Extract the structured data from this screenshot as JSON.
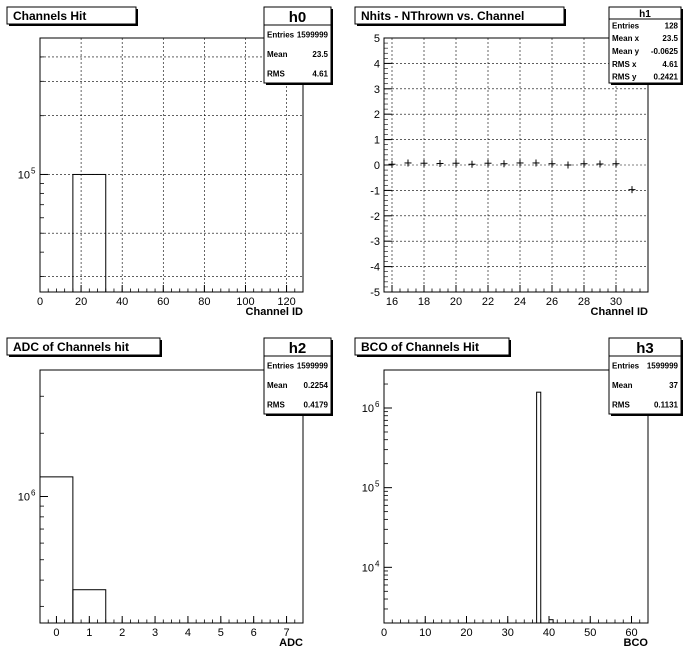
{
  "chart_data": [
    {
      "id": "h0",
      "type": "bar",
      "title": "Channels Hit",
      "xlabel": "Channel ID",
      "ylabel": "",
      "xlim": [
        0,
        128
      ],
      "ylim": [
        25000,
        500000
      ],
      "log_y": true,
      "grid": true,
      "x_ticks": [
        "0",
        "20",
        "40",
        "60",
        "80",
        "100",
        "120"
      ],
      "y_ticks": [
        "10^5"
      ],
      "bins": [
        {
          "x0": 16,
          "x1": 32,
          "value": 100000
        }
      ],
      "stats": {
        "name": "h0",
        "rows": [
          [
            "Entries",
            "1599999"
          ],
          [
            "Mean",
            "23.5"
          ],
          [
            "RMS",
            "4.61"
          ]
        ]
      }
    },
    {
      "id": "h1",
      "type": "scatter",
      "title": "Nhits - NThrown vs. Channel",
      "xlabel": "Channel ID",
      "ylabel": "",
      "xlim": [
        15.5,
        32
      ],
      "ylim": [
        -5,
        5
      ],
      "grid": true,
      "x_ticks": [
        "16",
        "18",
        "20",
        "22",
        "24",
        "26",
        "28",
        "30"
      ],
      "y_ticks": [
        "-5",
        "-4",
        "-3",
        "-2",
        "-1",
        "0",
        "1",
        "2",
        "3",
        "4",
        "5"
      ],
      "points": [
        {
          "x": 16,
          "y": 0.03
        },
        {
          "x": 17,
          "y": 0.08
        },
        {
          "x": 18,
          "y": 0.07
        },
        {
          "x": 19,
          "y": 0.06
        },
        {
          "x": 20,
          "y": 0.07
        },
        {
          "x": 21,
          "y": 0.03
        },
        {
          "x": 22,
          "y": 0.07
        },
        {
          "x": 23,
          "y": 0.05
        },
        {
          "x": 24,
          "y": 0.08
        },
        {
          "x": 25,
          "y": 0.08
        },
        {
          "x": 26,
          "y": 0.05
        },
        {
          "x": 27,
          "y": 0.0
        },
        {
          "x": 28,
          "y": 0.05
        },
        {
          "x": 29,
          "y": 0.04
        },
        {
          "x": 30,
          "y": 0.05
        },
        {
          "x": 31,
          "y": -0.97
        }
      ],
      "stats": {
        "name": "h1",
        "rows": [
          [
            "Entries",
            "128"
          ],
          [
            "Mean x",
            "23.5"
          ],
          [
            "Mean y",
            "-0.0625"
          ],
          [
            "RMS x",
            "4.61"
          ],
          [
            "RMS y",
            "0.2421"
          ]
        ]
      }
    },
    {
      "id": "h2",
      "type": "bar",
      "title": "ADC of Channels hit",
      "xlabel": "ADC",
      "ylabel": "",
      "xlim": [
        -0.5,
        7.5
      ],
      "ylim": [
        250000,
        4000000
      ],
      "log_y": true,
      "grid": false,
      "x_ticks": [
        "0",
        "1",
        "2",
        "3",
        "4",
        "5",
        "6",
        "7"
      ],
      "y_ticks": [
        "10^6"
      ],
      "bins": [
        {
          "x0": -0.5,
          "x1": 0.5,
          "value": 1240000
        },
        {
          "x0": 0.5,
          "x1": 1.5,
          "value": 360000
        }
      ],
      "stats": {
        "name": "h2",
        "rows": [
          [
            "Entries",
            "1599999"
          ],
          [
            "Mean",
            "0.2254"
          ],
          [
            "RMS",
            "0.4179"
          ]
        ]
      }
    },
    {
      "id": "h3",
      "type": "bar",
      "title": "BCO of Channels Hit",
      "xlabel": "BCO",
      "ylabel": "",
      "xlim": [
        0,
        64
      ],
      "ylim": [
        2000,
        3000000
      ],
      "log_y": true,
      "grid": false,
      "x_ticks": [
        "0",
        "10",
        "20",
        "30",
        "40",
        "50",
        "60"
      ],
      "y_ticks": [
        "10^4",
        "10^5",
        "10^6"
      ],
      "bins": [
        {
          "x0": 37,
          "x1": 38,
          "value": 1580000
        },
        {
          "x0": 40,
          "x1": 41,
          "value": 2200
        }
      ],
      "stats": {
        "name": "h3",
        "rows": [
          [
            "Entries",
            "1599999"
          ],
          [
            "Mean",
            "37"
          ],
          [
            "RMS",
            "0.1131"
          ]
        ]
      }
    }
  ]
}
